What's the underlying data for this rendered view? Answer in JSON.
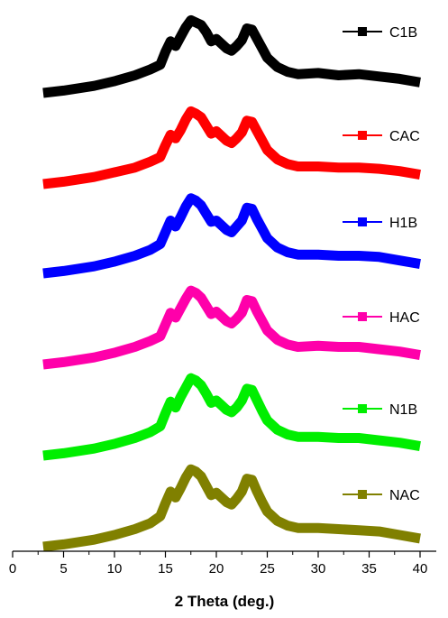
{
  "chart_data": {
    "type": "line",
    "xlabel": "2 Theta (deg.)",
    "ylabel": "",
    "xlim": [
      0,
      42
    ],
    "xticks": [
      "0",
      "5",
      "10",
      "15",
      "20",
      "25",
      "30",
      "35",
      "40"
    ],
    "y_axis_visible": false,
    "grid": false,
    "legend_placement": "right, beside each curve",
    "x": [
      3,
      5,
      8,
      10,
      12,
      13.5,
      14.5,
      15,
      15.5,
      16,
      16.5,
      17,
      17.5,
      18,
      18.5,
      19,
      19.5,
      20,
      20.5,
      21,
      21.5,
      22,
      22.5,
      23,
      23.5,
      24,
      24.5,
      25,
      26,
      27,
      28,
      30,
      32,
      34,
      36,
      38,
      40
    ],
    "series": [
      {
        "name": "C1B",
        "color": "#000000",
        "values": [
          0,
          2,
          6,
          10,
          15,
          20,
          24,
          35,
          44,
          40,
          48,
          56,
          62,
          60,
          58,
          52,
          44,
          46,
          42,
          38,
          36,
          40,
          45,
          55,
          54,
          46,
          38,
          30,
          22,
          18,
          16,
          17,
          15,
          16,
          14,
          12,
          9
        ]
      },
      {
        "name": "CAC",
        "color": "#ff0000",
        "values": [
          0,
          2,
          6,
          10,
          14,
          19,
          23,
          33,
          42,
          39,
          46,
          55,
          62,
          60,
          57,
          50,
          43,
          45,
          41,
          37,
          35,
          39,
          44,
          54,
          53,
          45,
          37,
          29,
          21,
          17,
          15,
          15,
          14,
          14,
          13,
          11,
          8
        ]
      },
      {
        "name": "H1B",
        "color": "#0000ff",
        "values": [
          0,
          2,
          6,
          10,
          15,
          20,
          25,
          35,
          45,
          40,
          48,
          57,
          64,
          62,
          58,
          51,
          44,
          45,
          41,
          37,
          35,
          40,
          45,
          56,
          55,
          46,
          38,
          30,
          22,
          18,
          16,
          16,
          15,
          15,
          14,
          11,
          8
        ]
      },
      {
        "name": "HAC",
        "color": "#ff00aa",
        "values": [
          0,
          2,
          6,
          10,
          15,
          20,
          24,
          34,
          44,
          40,
          48,
          56,
          63,
          61,
          57,
          50,
          43,
          45,
          41,
          37,
          35,
          39,
          44,
          55,
          54,
          45,
          37,
          29,
          21,
          17,
          15,
          16,
          15,
          15,
          13,
          11,
          8
        ]
      },
      {
        "name": "N1B",
        "color": "#00ee00",
        "values": [
          0,
          2,
          6,
          10,
          15,
          20,
          25,
          36,
          46,
          41,
          50,
          58,
          66,
          64,
          60,
          53,
          45,
          47,
          43,
          39,
          37,
          41,
          47,
          57,
          56,
          47,
          38,
          30,
          22,
          18,
          16,
          16,
          15,
          15,
          13,
          11,
          8
        ]
      },
      {
        "name": "NAC",
        "color": "#808000",
        "values": [
          0,
          2,
          6,
          10,
          15,
          20,
          26,
          37,
          47,
          42,
          50,
          59,
          66,
          64,
          60,
          52,
          44,
          46,
          42,
          38,
          36,
          41,
          47,
          58,
          57,
          47,
          38,
          30,
          22,
          18,
          16,
          16,
          15,
          14,
          13,
          10,
          7
        ]
      }
    ]
  }
}
